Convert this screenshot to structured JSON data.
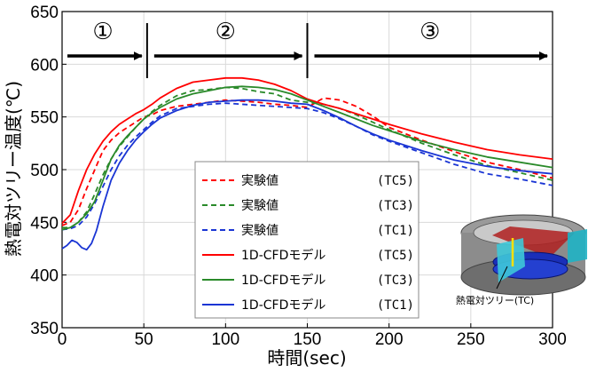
{
  "chart_data": {
    "type": "line",
    "xlabel": "時間(sec)",
    "ylabel": "熱電対ツリー温度(℃)",
    "xlim": [
      0,
      300
    ],
    "ylim": [
      350,
      650
    ],
    "xticks": [
      0,
      50,
      100,
      150,
      200,
      250,
      300
    ],
    "yticks": [
      350,
      400,
      450,
      500,
      550,
      600,
      650
    ],
    "grid": true,
    "legend_position": "bottom-center",
    "phases": [
      {
        "label": "①",
        "x_start": 0,
        "x_end": 52
      },
      {
        "label": "②",
        "x_start": 52,
        "x_end": 150
      },
      {
        "label": "③",
        "x_start": 150,
        "x_end": 300
      }
    ],
    "phase_dividers": [
      52,
      150
    ],
    "series": [
      {
        "name": "実験値",
        "tc": "(TC5)",
        "color": "#ff0000",
        "dash": true,
        "x": [
          0,
          5,
          10,
          15,
          20,
          25,
          30,
          35,
          40,
          45,
          50,
          55,
          60,
          70,
          80,
          90,
          100,
          110,
          120,
          130,
          140,
          150,
          160,
          170,
          180,
          190,
          200,
          220,
          240,
          260,
          280,
          300
        ],
        "y": [
          447,
          450,
          462,
          482,
          500,
          518,
          528,
          535,
          540,
          545,
          550,
          552,
          556,
          560,
          562,
          564,
          566,
          565,
          564,
          562,
          561,
          559,
          568,
          566,
          560,
          551,
          540,
          528,
          517,
          507,
          500,
          492
        ]
      },
      {
        "name": "実験値",
        "tc": "(TC3)",
        "color": "#2a8a2a",
        "dash": true,
        "x": [
          0,
          5,
          10,
          15,
          20,
          25,
          30,
          35,
          40,
          45,
          50,
          55,
          60,
          70,
          80,
          90,
          100,
          110,
          120,
          130,
          140,
          150,
          160,
          170,
          180,
          190,
          200,
          220,
          240,
          260,
          280,
          300
        ],
        "y": [
          445,
          445,
          450,
          460,
          477,
          495,
          510,
          522,
          531,
          540,
          548,
          555,
          561,
          570,
          575,
          576,
          578,
          577,
          574,
          572,
          566,
          564,
          562,
          558,
          552,
          545,
          538,
          525,
          514,
          504,
          497,
          490
        ]
      },
      {
        "name": "実験値",
        "tc": "(TC1)",
        "color": "#1a35d4",
        "dash": true,
        "x": [
          0,
          5,
          10,
          15,
          20,
          25,
          30,
          35,
          40,
          45,
          50,
          55,
          60,
          70,
          80,
          90,
          100,
          110,
          120,
          130,
          140,
          150,
          160,
          170,
          180,
          190,
          200,
          220,
          240,
          260,
          280,
          300
        ],
        "y": [
          443,
          444,
          447,
          455,
          468,
          484,
          500,
          513,
          523,
          531,
          538,
          545,
          551,
          558,
          560,
          562,
          563,
          562,
          561,
          560,
          559,
          558,
          554,
          548,
          541,
          533,
          527,
          516,
          505,
          496,
          491,
          485
        ]
      },
      {
        "name": "1D-CFDモデル",
        "tc": "(TC5)",
        "color": "#ff0000",
        "dash": false,
        "x": [
          0,
          5,
          10,
          15,
          20,
          25,
          30,
          35,
          40,
          45,
          50,
          55,
          60,
          70,
          80,
          90,
          100,
          110,
          120,
          130,
          140,
          150,
          160,
          170,
          180,
          190,
          200,
          220,
          240,
          260,
          280,
          300
        ],
        "y": [
          449,
          457,
          480,
          500,
          515,
          527,
          536,
          543,
          548,
          553,
          557,
          562,
          568,
          577,
          583,
          585,
          587,
          587,
          585,
          581,
          575,
          567,
          562,
          558,
          553,
          548,
          543,
          534,
          526,
          519,
          514,
          510
        ]
      },
      {
        "name": "1D-CFDモデル",
        "tc": "(TC3)",
        "color": "#2a8a2a",
        "dash": false,
        "x": [
          0,
          5,
          10,
          15,
          20,
          25,
          30,
          35,
          40,
          45,
          50,
          55,
          60,
          70,
          80,
          90,
          100,
          110,
          120,
          130,
          140,
          150,
          160,
          170,
          180,
          190,
          200,
          220,
          240,
          260,
          280,
          300
        ],
        "y": [
          443,
          445,
          450,
          458,
          470,
          490,
          510,
          523,
          532,
          540,
          548,
          554,
          559,
          567,
          572,
          575,
          578,
          579,
          578,
          576,
          572,
          566,
          560,
          554,
          548,
          542,
          537,
          527,
          519,
          512,
          507,
          502
        ]
      },
      {
        "name": "1D-CFDモデル",
        "tc": "(TC1)",
        "color": "#1a35d4",
        "dash": false,
        "x": [
          0,
          3,
          6,
          9,
          12,
          15,
          18,
          21,
          25,
          30,
          35,
          40,
          45,
          50,
          55,
          60,
          70,
          80,
          90,
          100,
          110,
          120,
          130,
          140,
          150,
          160,
          170,
          180,
          190,
          200,
          220,
          240,
          260,
          280,
          300
        ],
        "y": [
          425,
          428,
          433,
          431,
          426,
          424,
          430,
          442,
          465,
          490,
          506,
          518,
          528,
          536,
          543,
          549,
          556,
          561,
          564,
          565,
          566,
          566,
          565,
          563,
          562,
          556,
          549,
          541,
          534,
          528,
          518,
          509,
          503,
          499,
          496
        ]
      }
    ]
  },
  "inset": {
    "label": "熱電対ツリー(TC)"
  }
}
